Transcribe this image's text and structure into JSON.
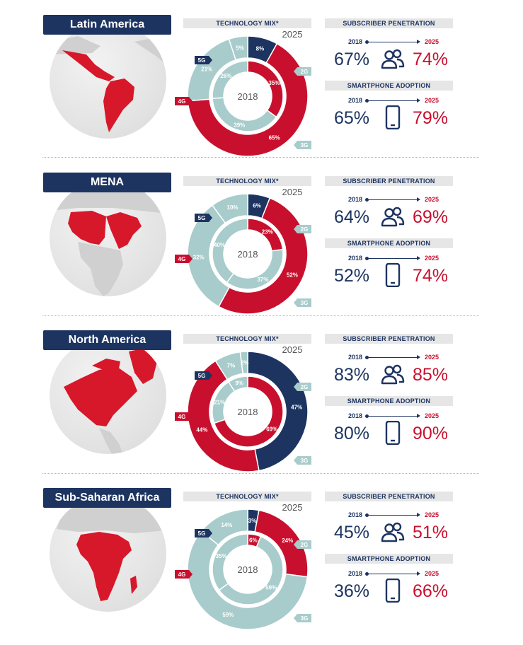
{
  "colors": {
    "navy": "#1d3461",
    "red": "#c8102e",
    "teal": "#a8cccb",
    "grey": "#e6e6e6"
  },
  "labels": {
    "technology_mix": "TECHNOLOGY MIX*",
    "subscriber_penetration": "SUBSCRIBER PENETRATION",
    "smartphone_adoption": "SMARTPHONE ADOPTION",
    "year_from": "2018",
    "year_to": "2025",
    "tech_5g": "5G",
    "tech_4g": "4G",
    "tech_3g": "3G",
    "tech_2g": "2G"
  },
  "icons": [
    "people-icon",
    "smartphone-icon"
  ],
  "regions": [
    {
      "name": "Latin America",
      "subscriber": {
        "y2018": "67%",
        "y2025": "74%"
      },
      "smartphone": {
        "y2018": "65%",
        "y2025": "79%"
      }
    },
    {
      "name": "MENA",
      "subscriber": {
        "y2018": "64%",
        "y2025": "69%"
      },
      "smartphone": {
        "y2018": "52%",
        "y2025": "74%"
      }
    },
    {
      "name": "North America",
      "subscriber": {
        "y2018": "83%",
        "y2025": "85%"
      },
      "smartphone": {
        "y2018": "80%",
        "y2025": "90%"
      }
    },
    {
      "name": "Sub-Saharan Africa",
      "subscriber": {
        "y2018": "45%",
        "y2025": "51%"
      },
      "smartphone": {
        "y2018": "36%",
        "y2025": "66%"
      }
    }
  ],
  "chart_data": [
    {
      "type": "pie",
      "title": "TECHNOLOGY MIX*",
      "region": "Latin America",
      "categories": [
        "5G",
        "4G",
        "3G",
        "2G"
      ],
      "series": [
        {
          "name": "2025",
          "values": [
            8,
            65,
            21,
            5
          ]
        },
        {
          "name": "2018",
          "values": [
            0,
            35,
            39,
            26
          ]
        }
      ]
    },
    {
      "type": "pie",
      "title": "TECHNOLOGY MIX*",
      "region": "MENA",
      "categories": [
        "5G",
        "4G",
        "3G",
        "2G"
      ],
      "series": [
        {
          "name": "2025",
          "values": [
            6,
            52,
            32,
            10
          ]
        },
        {
          "name": "2018",
          "values": [
            0,
            23,
            37,
            40
          ]
        }
      ]
    },
    {
      "type": "pie",
      "title": "TECHNOLOGY MIX*",
      "region": "North America",
      "categories": [
        "5G",
        "4G",
        "3G",
        "2G"
      ],
      "series": [
        {
          "name": "2025",
          "values": [
            47,
            44,
            7,
            2
          ]
        },
        {
          "name": "2018",
          "values": [
            0,
            69,
            21,
            9
          ]
        }
      ]
    },
    {
      "type": "pie",
      "title": "TECHNOLOGY MIX*",
      "region": "Sub-Saharan Africa",
      "categories": [
        "5G",
        "4G",
        "3G",
        "2G"
      ],
      "series": [
        {
          "name": "2025",
          "values": [
            3,
            24,
            59,
            14
          ]
        },
        {
          "name": "2018",
          "values": [
            0,
            6,
            59,
            35
          ]
        }
      ]
    }
  ]
}
